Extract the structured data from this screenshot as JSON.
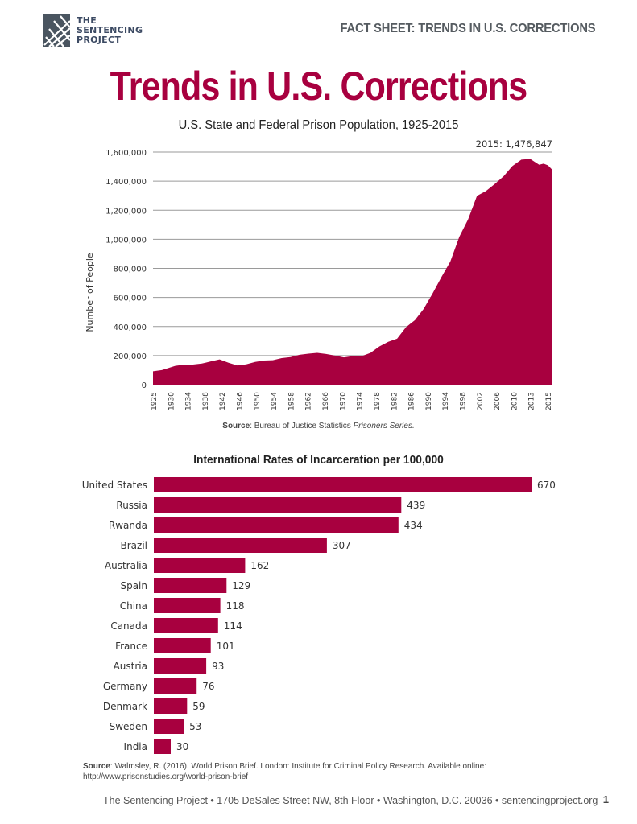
{
  "header": {
    "logo_lines": [
      "THE",
      "SENTENCING",
      "PROJECT"
    ],
    "fact_sheet_label": "FACT SHEET: TRENDS IN U.S. CORRECTIONS",
    "main_title": "Trends in U.S. Corrections"
  },
  "colors": {
    "accent": "#a8003f",
    "logo": "#3c4a63",
    "gridline": "#9a9a9a"
  },
  "chart_data": [
    {
      "type": "area",
      "title": "U.S. State and Federal Prison Population, 1925-2015",
      "xlabel": "",
      "ylabel": "Number of People",
      "ylim": [
        0,
        1600000
      ],
      "yticks": [
        0,
        200000,
        400000,
        600000,
        800000,
        1000000,
        1200000,
        1400000,
        1600000
      ],
      "ytick_labels": [
        "0",
        "200,000",
        "400,000",
        "600,000",
        "800,000",
        "1,000,000",
        "1,200,000",
        "1,400,000",
        "1,600,000"
      ],
      "xtick_labels": [
        "1925",
        "1930",
        "1934",
        "1938",
        "1942",
        "1946",
        "1950",
        "1954",
        "1958",
        "1962",
        "1966",
        "1970",
        "1974",
        "1978",
        "1982",
        "1986",
        "1990",
        "1994",
        "1998",
        "2002",
        "2006",
        "2010",
        "2013",
        "2015"
      ],
      "grid": true,
      "annotation": "2015: 1,476,847",
      "source_label": "Source",
      "source_text": ": Bureau of Justice Statistics ",
      "source_italic": "Prisoners Series.",
      "x": [
        1925,
        1927,
        1930,
        1932,
        1934,
        1936,
        1938,
        1940,
        1942,
        1944,
        1946,
        1948,
        1950,
        1952,
        1954,
        1956,
        1958,
        1960,
        1962,
        1964,
        1966,
        1968,
        1970,
        1972,
        1974,
        1976,
        1978,
        1980,
        1982,
        1984,
        1986,
        1988,
        1990,
        1992,
        1994,
        1996,
        1998,
        2000,
        2002,
        2004,
        2006,
        2008,
        2010,
        2012,
        2013,
        2014,
        2015
      ],
      "series": [
        {
          "name": "Prison Population",
          "values": [
            91669,
            100000,
            129453,
            137997,
            138316,
            145038,
            160000,
            173706,
            150384,
            132456,
            140079,
            155977,
            166123,
            168233,
            182901,
            189565,
            205643,
            212953,
            218830,
            210895,
            199654,
            187914,
            196429,
            196092,
            218466,
            262833,
            294396,
            315974,
            395516,
            443398,
            522084,
            627600,
            739980,
            847271,
            1016691,
            1137722,
            1299096,
            1331278,
            1380516,
            1433728,
            1504598,
            1547742,
            1552669,
            1512430,
            1520403,
            1508636,
            1476847
          ]
        }
      ]
    },
    {
      "type": "bar",
      "orientation": "horizontal",
      "title": "International Rates of Incarceration per 100,000",
      "categories": [
        "United States",
        "Russia",
        "Rwanda",
        "Brazil",
        "Australia",
        "Spain",
        "China",
        "Canada",
        "France",
        "Austria",
        "Germany",
        "Denmark",
        "Sweden",
        "India"
      ],
      "values": [
        670,
        439,
        434,
        307,
        162,
        129,
        118,
        114,
        101,
        93,
        76,
        59,
        53,
        30
      ],
      "xlabel": "",
      "ylabel": "",
      "xlim": [
        0,
        700
      ],
      "grid": false,
      "source_label": "Source",
      "source_text": ": Walmsley, R. (2016). World Prison Brief. London: Institute for Criminal Policy Research. Available online: http://www.prisonstudies.org/world-prison-brief"
    }
  ],
  "footer": {
    "address": "The Sentencing Project • 1705 DeSales Street NW, 8th Floor • Washington, D.C. 20036 • sentencingproject.org",
    "page_number": "1"
  }
}
